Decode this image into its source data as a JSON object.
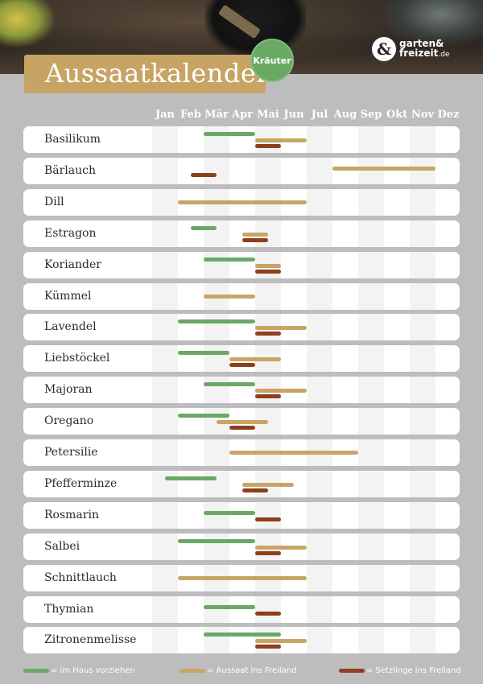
{
  "header": {
    "title": "Aussaatkalender",
    "badge": "Kräuter",
    "logo_line1": "garten&",
    "logo_line2": "freizeit",
    "logo_tld": ".de"
  },
  "colors": {
    "indoor": "#6aa964",
    "outdoor": "#c9a466",
    "seedling": "#8e3f1b"
  },
  "months": [
    "Jan",
    "Feb",
    "Mär",
    "Apr",
    "Mai",
    "Jun",
    "Jul",
    "Aug",
    "Sep",
    "Okt",
    "Nov",
    "Dez"
  ],
  "legend": {
    "indoor": "= im Haus vorziehen",
    "outdoor": "= Aussaat ins Freiland",
    "seedling": "= Setzlinge ins Freiland"
  },
  "plants": [
    {
      "name": "Basilikum",
      "indoor": [
        3.0,
        5.0
      ],
      "outdoor": [
        5.0,
        7.0
      ],
      "seedling": [
        5.0,
        6.0
      ]
    },
    {
      "name": "Bärlauch",
      "outdoor": [
        8.0,
        12.0
      ],
      "seedling": [
        2.5,
        3.5
      ]
    },
    {
      "name": "Dill",
      "outdoor": [
        2.0,
        7.0
      ]
    },
    {
      "name": "Estragon",
      "indoor": [
        2.5,
        3.5
      ],
      "outdoor": [
        4.5,
        5.5
      ],
      "seedling": [
        4.5,
        5.5
      ]
    },
    {
      "name": "Koriander",
      "indoor": [
        3.0,
        5.0
      ],
      "outdoor": [
        5.0,
        6.0
      ],
      "seedling": [
        5.0,
        6.0
      ]
    },
    {
      "name": "Kümmel",
      "outdoor": [
        3.0,
        5.0
      ]
    },
    {
      "name": "Lavendel",
      "indoor": [
        2.0,
        5.0
      ],
      "outdoor": [
        5.0,
        7.0
      ],
      "seedling": [
        5.0,
        6.0
      ]
    },
    {
      "name": "Liebstöckel",
      "indoor": [
        2.0,
        4.0
      ],
      "outdoor": [
        4.0,
        6.0
      ],
      "seedling": [
        4.0,
        5.0
      ]
    },
    {
      "name": "Majoran",
      "indoor": [
        3.0,
        5.0
      ],
      "outdoor": [
        5.0,
        7.0
      ],
      "seedling": [
        5.0,
        6.0
      ]
    },
    {
      "name": "Oregano",
      "indoor": [
        2.0,
        4.0
      ],
      "outdoor": [
        3.5,
        5.5
      ],
      "seedling": [
        4.0,
        5.0
      ]
    },
    {
      "name": "Petersilie",
      "outdoor": [
        4.0,
        9.0
      ]
    },
    {
      "name": "Pfefferminze",
      "indoor": [
        1.5,
        3.5
      ],
      "outdoor": [
        4.5,
        6.5
      ],
      "seedling": [
        4.5,
        5.5
      ]
    },
    {
      "name": "Rosmarin",
      "indoor": [
        3.0,
        5.0
      ],
      "seedling": [
        5.0,
        6.0
      ]
    },
    {
      "name": "Salbei",
      "indoor": [
        2.0,
        5.0
      ],
      "outdoor": [
        5.0,
        7.0
      ],
      "seedling": [
        5.0,
        6.0
      ]
    },
    {
      "name": "Schnittlauch",
      "outdoor": [
        2.0,
        7.0
      ]
    },
    {
      "name": "Thymian",
      "indoor": [
        3.0,
        5.0
      ],
      "seedling": [
        5.0,
        6.0
      ]
    },
    {
      "name": "Zitronenmelisse",
      "indoor": [
        3.0,
        6.0
      ],
      "outdoor": [
        5.0,
        7.0
      ],
      "seedling": [
        5.0,
        6.0
      ]
    }
  ]
}
